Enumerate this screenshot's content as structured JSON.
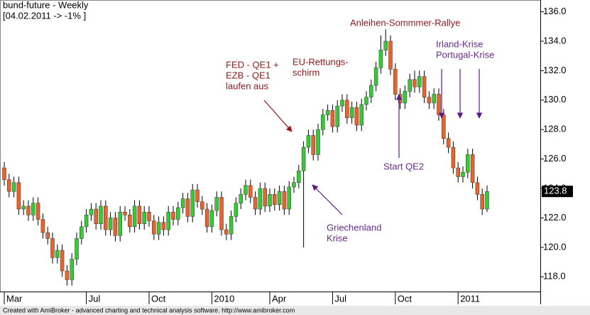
{
  "chart_data": {
    "type": "candlestick",
    "title": "bund-future - Weekly",
    "subtitle": "[04.02.2011 -> -1% ]",
    "footer": "Created with AmiBroker - advanced charting and technical analysis software. http://www.amibroker.com",
    "annotations": [
      "Anleihen-Sommmer-Rallye",
      "FED - QE1 +",
      "EZB - QE1",
      "laufen aus",
      "EU-Rettungs-",
      "schirm",
      "Irland-Krise",
      "Portugal-Krise",
      "Start QE2",
      "Griechenland",
      "Krise"
    ],
    "up_color": "#33cc33",
    "down_color": "#e8642c",
    "ylim": [
      117.0,
      136.8
    ],
    "yticks": [
      {
        "value": 118,
        "label": "118.0"
      },
      {
        "value": 120,
        "label": "120.0"
      },
      {
        "value": 122,
        "label": "122.0"
      },
      {
        "value": 124,
        "label": "124.0"
      },
      {
        "value": 126,
        "label": "126.0"
      },
      {
        "value": 128,
        "label": "128.0"
      },
      {
        "value": 130,
        "label": "130.0"
      },
      {
        "value": 132,
        "label": "132.0"
      },
      {
        "value": 134,
        "label": "134.0"
      },
      {
        "value": 136,
        "label": "136.0"
      }
    ],
    "categories": [
      "Mar",
      null,
      null,
      null,
      null,
      null,
      null,
      null,
      null,
      null,
      null,
      null,
      null,
      null,
      null,
      null,
      null,
      "Jul",
      null,
      null,
      null,
      null,
      null,
      null,
      null,
      null,
      null,
      null,
      null,
      null,
      "Oct",
      null,
      null,
      null,
      null,
      null,
      null,
      null,
      null,
      null,
      null,
      null,
      null,
      "2010",
      null,
      null,
      null,
      null,
      null,
      null,
      null,
      null,
      null,
      null,
      null,
      "Apr",
      null,
      null,
      null,
      null,
      null,
      null,
      null,
      null,
      null,
      null,
      null,
      null,
      "Jul",
      null,
      null,
      null,
      null,
      null,
      null,
      null,
      null,
      null,
      null,
      null,
      null,
      "Oct",
      null,
      null,
      null,
      null,
      null,
      null,
      null,
      null,
      null,
      null,
      null,
      null,
      "2011",
      null,
      null,
      null,
      null,
      null,
      null
    ],
    "open": [
      125.4,
      124.6,
      123.8,
      124.4,
      122.6,
      122.8,
      122.2,
      123.0,
      121.9,
      121.0,
      120.6,
      119.3,
      119.8,
      118.4,
      117.8,
      119.2,
      120.6,
      121.4,
      122.2,
      122.6,
      121.6,
      122.8,
      121.2,
      122.0,
      120.8,
      122.4,
      122.2,
      121.4,
      122.8,
      121.6,
      122.4,
      121.8,
      120.9,
      121.7,
      121.2,
      122.4,
      121.9,
      122.7,
      123.3,
      122.1,
      123.9,
      123.1,
      122.6,
      121.4,
      122.5,
      123.4,
      121.2,
      120.9,
      122.1,
      123.0,
      123.6,
      124.2,
      123.4,
      122.6,
      124.0,
      122.8,
      123.6,
      122.9,
      123.8,
      122.6,
      124.1,
      124.4,
      125.2,
      126.8,
      127.6,
      126.3,
      128.0,
      129.0,
      129.3,
      128.2,
      129.6,
      130.0,
      128.8,
      129.5,
      128.3,
      129.7,
      130.2,
      131.0,
      132.2,
      133.4,
      134.0,
      132.1,
      130.4,
      129.8,
      130.6,
      131.4,
      130.9,
      131.6,
      130.2,
      129.8,
      130.4,
      129.0,
      127.4,
      126.8,
      125.4,
      124.8,
      125.1,
      126.3,
      124.4,
      123.6,
      122.6
    ],
    "high": [
      125.8,
      125.0,
      124.8,
      124.8,
      123.2,
      123.2,
      123.4,
      123.4,
      122.3,
      121.4,
      121.0,
      120.2,
      120.2,
      118.8,
      119.6,
      121.0,
      121.8,
      122.6,
      123.0,
      123.0,
      123.2,
      123.2,
      122.4,
      122.4,
      122.8,
      122.8,
      122.6,
      123.2,
      123.2,
      122.8,
      122.8,
      122.2,
      122.1,
      122.1,
      122.8,
      122.8,
      123.1,
      123.7,
      123.7,
      124.3,
      124.3,
      123.5,
      123.0,
      122.9,
      123.8,
      123.8,
      121.6,
      122.5,
      123.4,
      124.0,
      124.6,
      124.6,
      123.8,
      124.4,
      124.4,
      124.0,
      124.0,
      124.2,
      124.2,
      124.5,
      124.8,
      125.6,
      127.2,
      128.0,
      128.0,
      128.4,
      129.4,
      129.7,
      129.7,
      130.0,
      130.4,
      130.4,
      129.9,
      129.9,
      130.1,
      130.6,
      131.4,
      132.6,
      134.4,
      134.8,
      134.4,
      132.5,
      130.8,
      131.0,
      131.8,
      132.0,
      132.0,
      132.0,
      130.6,
      130.8,
      130.8,
      129.4,
      127.8,
      127.2,
      125.8,
      125.5,
      126.7,
      126.7,
      124.8,
      124.0,
      124.2
    ],
    "low": [
      124.2,
      123.4,
      123.4,
      122.2,
      122.2,
      121.8,
      121.8,
      121.5,
      120.6,
      120.2,
      118.9,
      118.9,
      118.0,
      117.4,
      117.4,
      118.8,
      120.2,
      121.0,
      121.8,
      121.2,
      121.2,
      120.8,
      120.8,
      120.4,
      120.4,
      121.8,
      121.0,
      121.0,
      121.2,
      121.2,
      121.4,
      120.5,
      120.5,
      120.8,
      120.8,
      121.5,
      121.5,
      122.3,
      121.7,
      121.7,
      122.7,
      122.2,
      121.0,
      121.0,
      122.1,
      120.8,
      120.5,
      120.5,
      121.7,
      122.6,
      123.2,
      123.0,
      122.2,
      122.2,
      122.4,
      122.4,
      122.5,
      122.5,
      122.2,
      122.2,
      123.7,
      124.0,
      120.0,
      126.4,
      125.9,
      125.9,
      127.6,
      128.6,
      127.8,
      127.8,
      129.2,
      128.4,
      128.4,
      127.9,
      127.9,
      129.3,
      129.8,
      130.6,
      131.8,
      133.0,
      131.7,
      130.0,
      129.4,
      129.4,
      130.2,
      130.5,
      130.5,
      129.8,
      129.4,
      129.4,
      128.6,
      127.0,
      126.4,
      125.0,
      124.4,
      124.4,
      124.7,
      124.0,
      123.2,
      122.2,
      122.4
    ],
    "close": [
      124.6,
      123.8,
      124.4,
      122.6,
      122.8,
      122.2,
      123.0,
      121.9,
      121.0,
      120.6,
      119.3,
      119.8,
      118.4,
      117.8,
      119.2,
      120.6,
      121.4,
      122.2,
      122.6,
      121.6,
      122.8,
      121.2,
      122.0,
      120.8,
      122.4,
      122.2,
      121.4,
      122.8,
      121.6,
      122.4,
      121.8,
      120.9,
      121.7,
      121.2,
      122.4,
      121.9,
      122.7,
      123.3,
      122.1,
      123.9,
      123.1,
      122.6,
      121.4,
      122.5,
      123.4,
      121.2,
      120.9,
      122.1,
      123.0,
      123.6,
      124.2,
      123.4,
      122.6,
      124.0,
      122.8,
      123.6,
      122.9,
      123.8,
      122.6,
      124.1,
      124.4,
      125.2,
      126.8,
      127.6,
      126.3,
      128.0,
      129.0,
      129.3,
      128.2,
      129.6,
      130.0,
      128.8,
      129.5,
      128.3,
      129.7,
      130.2,
      131.0,
      132.2,
      133.4,
      134.0,
      132.1,
      130.4,
      129.8,
      130.6,
      131.4,
      130.9,
      131.6,
      130.2,
      129.8,
      130.4,
      129.0,
      127.4,
      126.8,
      125.4,
      124.8,
      125.1,
      126.3,
      124.4,
      123.6,
      122.6,
      123.8
    ]
  }
}
